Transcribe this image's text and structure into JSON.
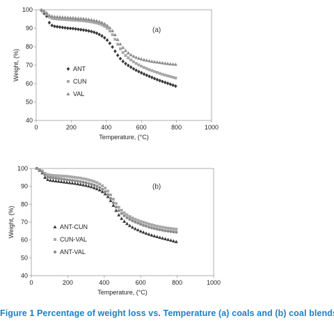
{
  "caption": "Figure 1 Percentage of weight loss vs. Temperature (a) coals and (b) coal blends",
  "chart_data": [
    {
      "type": "scatter",
      "panel_label": "(a)",
      "xlabel": "Temperature, (°C)",
      "ylabel": "Weight, (%)",
      "xlim": [
        0,
        1000
      ],
      "ylim": [
        40,
        100
      ],
      "xticks": [
        "0",
        "200",
        "400",
        "600",
        "800",
        "1000"
      ],
      "yticks": [
        "40",
        "50",
        "60",
        "70",
        "80",
        "90",
        "100"
      ],
      "grid": false,
      "legend_position": "lower-left",
      "series": [
        {
          "name": "ANT",
          "marker": "diamond",
          "color": "#3a3a3a",
          "x": [
            30,
            45,
            60,
            75,
            90,
            105,
            120,
            135,
            150,
            165,
            180,
            195,
            210,
            225,
            240,
            255,
            270,
            285,
            300,
            315,
            330,
            345,
            360,
            375,
            390,
            405,
            420,
            435,
            450,
            465,
            480,
            495,
            510,
            525,
            540,
            555,
            570,
            585,
            600,
            615,
            630,
            645,
            660,
            675,
            690,
            705,
            720,
            735,
            750,
            765,
            780,
            795
          ],
          "y": [
            99.5,
            98,
            96.5,
            93,
            91.5,
            91,
            90.8,
            90.6,
            90.4,
            90.2,
            90,
            89.9,
            89.8,
            89.6,
            89.4,
            89.2,
            89,
            88.8,
            88.5,
            88.2,
            87.8,
            87.3,
            86.6,
            85.8,
            84.8,
            83.5,
            81.8,
            79.8,
            77.5,
            75.3,
            73.5,
            72,
            70.8,
            69.8,
            68.9,
            68,
            67.2,
            66.5,
            65.8,
            65.1,
            64.5,
            63.9,
            63.3,
            62.7,
            62.1,
            61.6,
            61.1,
            60.6,
            60.1,
            59.6,
            59.1,
            58.6
          ]
        },
        {
          "name": "CUN",
          "marker": "square",
          "color": "#a8a8a8",
          "x": [
            30,
            45,
            60,
            75,
            90,
            105,
            120,
            135,
            150,
            165,
            180,
            195,
            210,
            225,
            240,
            255,
            270,
            285,
            300,
            315,
            330,
            345,
            360,
            375,
            390,
            405,
            420,
            435,
            450,
            465,
            480,
            495,
            510,
            525,
            540,
            555,
            570,
            585,
            600,
            615,
            630,
            645,
            660,
            675,
            690,
            705,
            720,
            735,
            750,
            765,
            780,
            795
          ],
          "y": [
            99.7,
            98.8,
            97.5,
            96,
            95.3,
            95.1,
            95,
            94.9,
            94.8,
            94.7,
            94.6,
            94.5,
            94.4,
            94.3,
            94.2,
            94.1,
            94,
            93.8,
            93.6,
            93.4,
            93.1,
            92.8,
            92.4,
            91.8,
            91,
            90,
            88.5,
            86.5,
            84,
            81.3,
            78.8,
            76.8,
            75.2,
            73.9,
            72.8,
            71.8,
            70.9,
            70.1,
            69.4,
            68.7,
            68.1,
            67.5,
            67,
            66.5,
            66,
            65.5,
            65,
            64.6,
            64.2,
            63.8,
            63.4,
            63
          ]
        },
        {
          "name": "VAL",
          "marker": "triangle",
          "color": "#8c8c8c",
          "x": [
            30,
            45,
            60,
            75,
            90,
            105,
            120,
            135,
            150,
            165,
            180,
            195,
            210,
            225,
            240,
            255,
            270,
            285,
            300,
            315,
            330,
            345,
            360,
            375,
            390,
            405,
            420,
            435,
            450,
            465,
            480,
            495,
            510,
            525,
            540,
            555,
            570,
            585,
            600,
            615,
            630,
            645,
            660,
            675,
            690,
            705,
            720,
            735,
            750,
            765,
            780,
            795
          ],
          "y": [
            100,
            99.3,
            98.3,
            97,
            96.5,
            96.3,
            96.2,
            96.1,
            96,
            95.9,
            95.8,
            95.7,
            95.6,
            95.5,
            95.4,
            95.3,
            95.2,
            95,
            94.8,
            94.6,
            94.3,
            94,
            93.6,
            93.1,
            92.4,
            91.5,
            90.3,
            88.6,
            86.4,
            83.8,
            81.4,
            79.5,
            77.9,
            76.6,
            75.6,
            74.8,
            74.2,
            73.7,
            73.3,
            72.9,
            72.6,
            72.3,
            72,
            71.8,
            71.6,
            71.4,
            71.2,
            71,
            70.8,
            70.6,
            70.5,
            70.4
          ]
        }
      ]
    },
    {
      "type": "scatter",
      "panel_label": "(b)",
      "xlabel": "Temperature, (°C)",
      "ylabel": "Weight, (%)",
      "xlim": [
        0,
        1000
      ],
      "ylim": [
        40,
        100
      ],
      "xticks": [
        "0",
        "200",
        "400",
        "600",
        "800",
        "1000"
      ],
      "yticks": [
        "40",
        "50",
        "60",
        "70",
        "80",
        "90",
        "100"
      ],
      "grid": false,
      "legend_position": "lower-left",
      "series": [
        {
          "name": "ANT-CUN",
          "marker": "triangle",
          "color": "#3a3a3a",
          "x": [
            30,
            45,
            60,
            75,
            90,
            105,
            120,
            135,
            150,
            165,
            180,
            195,
            210,
            225,
            240,
            255,
            270,
            285,
            300,
            315,
            330,
            345,
            360,
            375,
            390,
            405,
            420,
            435,
            450,
            465,
            480,
            495,
            510,
            525,
            540,
            555,
            570,
            585,
            600,
            615,
            630,
            645,
            660,
            675,
            690,
            705,
            720,
            735,
            750,
            765,
            780,
            795
          ],
          "y": [
            100,
            99,
            97.5,
            95,
            93.8,
            93.4,
            93.2,
            93,
            92.8,
            92.6,
            92.4,
            92.2,
            92,
            91.8,
            91.6,
            91.4,
            91.1,
            90.8,
            90.5,
            90.1,
            89.7,
            89.2,
            88.6,
            87.9,
            87,
            85.8,
            84.2,
            82,
            79.3,
            76.5,
            74,
            72,
            70.4,
            69.1,
            68,
            67.1,
            66.3,
            65.6,
            64.9,
            64.3,
            63.7,
            63.2,
            62.7,
            62.2,
            61.8,
            61.4,
            61,
            60.6,
            60.2,
            59.8,
            59.4,
            59
          ]
        },
        {
          "name": "CUN-VAL",
          "marker": "square",
          "color": "#a8a8a8",
          "x": [
            30,
            45,
            60,
            75,
            90,
            105,
            120,
            135,
            150,
            165,
            180,
            195,
            210,
            225,
            240,
            255,
            270,
            285,
            300,
            315,
            330,
            345,
            360,
            375,
            390,
            405,
            420,
            435,
            450,
            465,
            480,
            495,
            510,
            525,
            540,
            555,
            570,
            585,
            600,
            615,
            630,
            645,
            660,
            675,
            690,
            705,
            720,
            735,
            750,
            765,
            780,
            795
          ],
          "y": [
            100,
            99.4,
            98.6,
            97.3,
            96.6,
            96.3,
            96.1,
            96,
            95.9,
            95.8,
            95.7,
            95.6,
            95.4,
            95.2,
            95,
            94.8,
            94.6,
            94.3,
            94,
            93.6,
            93.2,
            92.7,
            92.1,
            91.3,
            90.3,
            89,
            87.3,
            85.2,
            82.8,
            80.4,
            78.3,
            76.6,
            75.2,
            74.1,
            73.1,
            72.3,
            71.6,
            71,
            70.4,
            69.9,
            69.4,
            68.9,
            68.5,
            68.1,
            67.7,
            67.4,
            67.1,
            66.8,
            66.6,
            66.4,
            66.2,
            66
          ]
        },
        {
          "name": "ANT-VAL",
          "marker": "circle",
          "color": "#8c8c8c",
          "x": [
            30,
            45,
            60,
            75,
            90,
            105,
            120,
            135,
            150,
            165,
            180,
            195,
            210,
            225,
            240,
            255,
            270,
            285,
            300,
            315,
            330,
            345,
            360,
            375,
            390,
            405,
            420,
            435,
            450,
            465,
            480,
            495,
            510,
            525,
            540,
            555,
            570,
            585,
            600,
            615,
            630,
            645,
            660,
            675,
            690,
            705,
            720,
            735,
            750,
            765,
            780,
            795
          ],
          "y": [
            100,
            99.2,
            98,
            96.2,
            95.2,
            94.9,
            94.7,
            94.5,
            94.3,
            94.1,
            93.9,
            93.7,
            93.5,
            93.3,
            93.1,
            92.9,
            92.6,
            92.3,
            92,
            91.6,
            91.2,
            90.7,
            90.1,
            89.3,
            88.3,
            87,
            85.3,
            83.2,
            80.8,
            78.4,
            76.4,
            74.8,
            73.5,
            72.4,
            71.5,
            70.7,
            70,
            69.4,
            68.8,
            68.2,
            67.7,
            67.2,
            66.8,
            66.4,
            66,
            65.7,
            65.4,
            65.1,
            64.9,
            64.7,
            64.5,
            64.3
          ]
        }
      ]
    }
  ]
}
